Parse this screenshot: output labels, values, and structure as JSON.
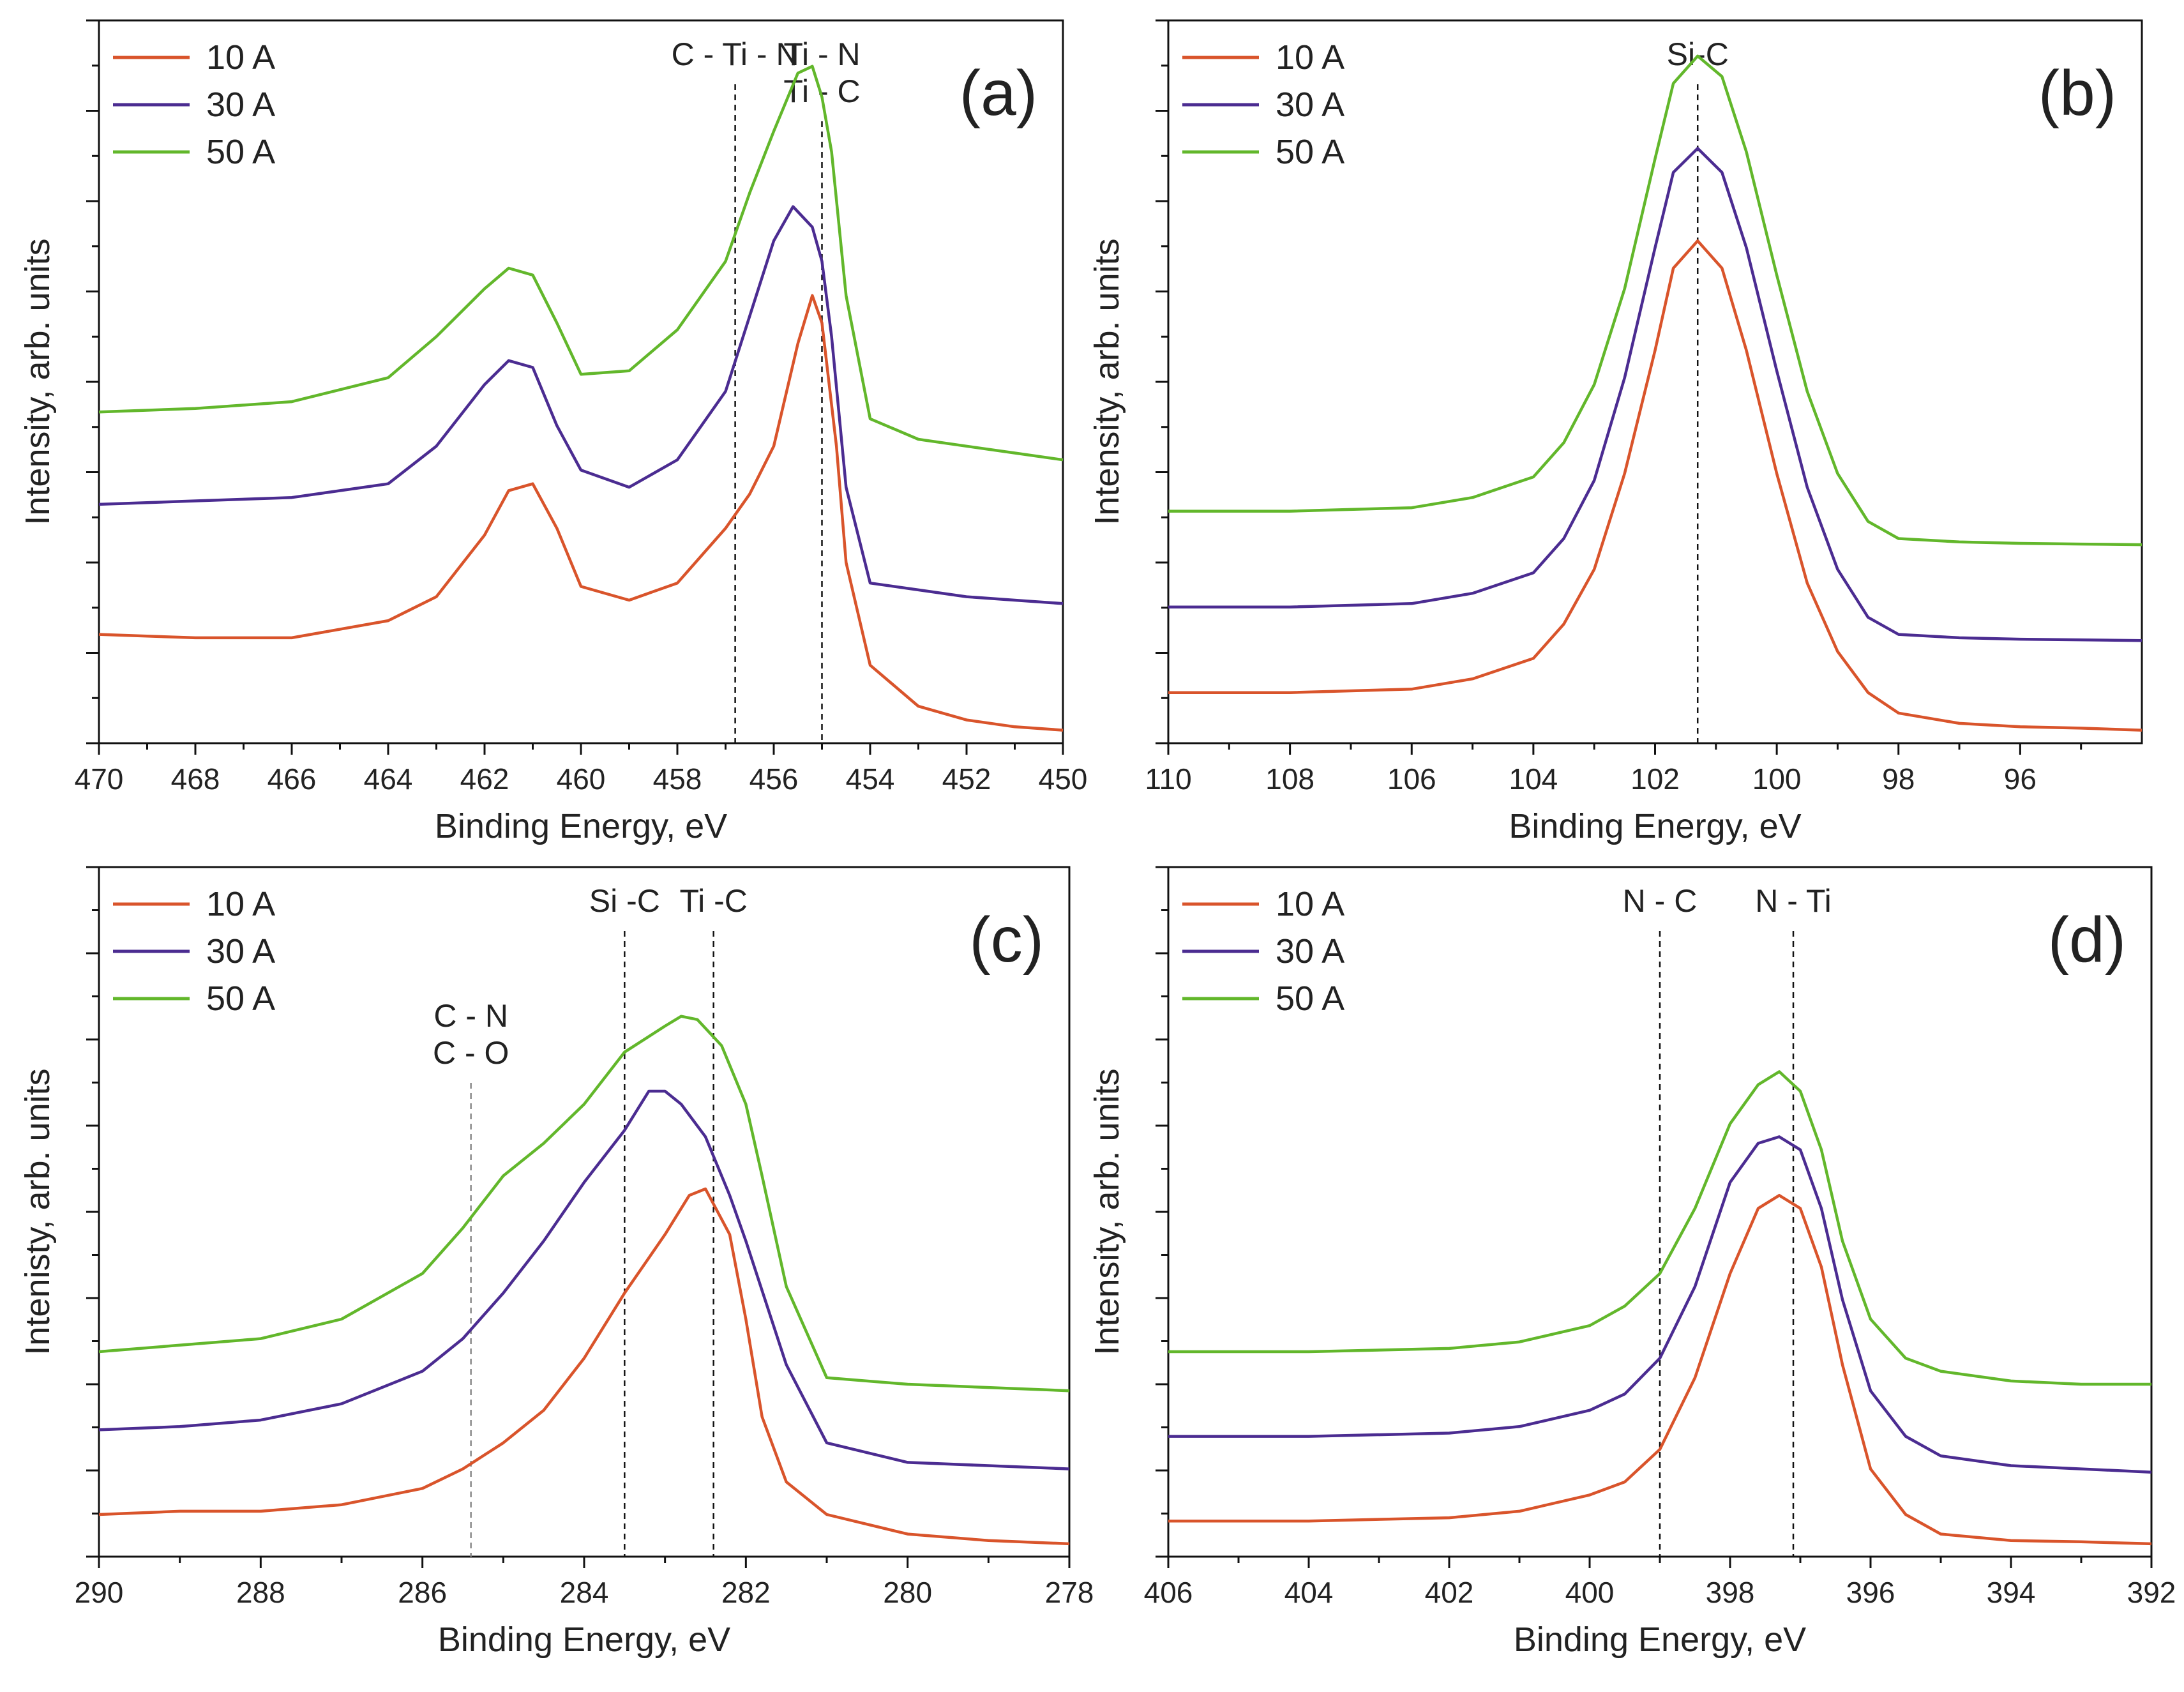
{
  "chart_data": [
    {
      "type": "line",
      "panel_label": "(a)",
      "xlabel": "Binding Energy, eV",
      "ylabel": "Intensity, arb. units",
      "xlim": [
        470,
        450
      ],
      "xticks": [
        "470",
        "468",
        "466",
        "464",
        "462",
        "460",
        "458",
        "456",
        "454",
        "452",
        "450"
      ],
      "legend": [
        "10 A",
        "30 A",
        "50 A"
      ],
      "legend_position": "top-left",
      "ref_lines": [
        {
          "x": 456.8,
          "label": [
            "C - Ti - N"
          ],
          "style": "dark"
        },
        {
          "x": 455.0,
          "label": [
            "Ti - N",
            "Ti - C"
          ],
          "style": "dark"
        }
      ],
      "series": [
        {
          "name": "10 A",
          "color": "#d9542b",
          "x": [
            470,
            468,
            466,
            464,
            463,
            462,
            461.5,
            461,
            460.5,
            460,
            459,
            458,
            457,
            456.5,
            456,
            455.5,
            455.2,
            455,
            454.7,
            454.5,
            454,
            453,
            452,
            451,
            450
          ],
          "y": [
            0.145,
            0.14,
            0.14,
            0.165,
            0.2,
            0.29,
            0.355,
            0.365,
            0.3,
            0.215,
            0.195,
            0.22,
            0.3,
            0.35,
            0.42,
            0.57,
            0.64,
            0.6,
            0.42,
            0.25,
            0.1,
            0.04,
            0.02,
            0.01,
            0.005
          ]
        },
        {
          "name": "30 A",
          "color": "#4b2c91",
          "x": [
            470,
            468,
            466,
            464,
            463,
            462,
            461.5,
            461,
            460.5,
            460,
            459,
            458,
            457,
            456.5,
            456,
            455.6,
            455.2,
            455,
            454.8,
            454.5,
            454,
            453,
            452,
            451,
            450
          ],
          "y": [
            0.335,
            0.34,
            0.345,
            0.365,
            0.42,
            0.51,
            0.545,
            0.535,
            0.45,
            0.385,
            0.36,
            0.4,
            0.5,
            0.61,
            0.72,
            0.77,
            0.74,
            0.69,
            0.58,
            0.36,
            0.22,
            0.21,
            0.2,
            0.195,
            0.19
          ]
        },
        {
          "name": "50 A",
          "color": "#62b72b",
          "x": [
            470,
            468,
            466,
            464,
            463,
            462,
            461.5,
            461,
            460.5,
            460,
            459,
            458,
            457,
            456.5,
            456,
            455.5,
            455.2,
            455,
            454.8,
            454.5,
            454,
            453,
            452,
            451,
            450
          ],
          "y": [
            0.47,
            0.475,
            0.485,
            0.52,
            0.58,
            0.65,
            0.68,
            0.67,
            0.6,
            0.525,
            0.53,
            0.59,
            0.69,
            0.79,
            0.88,
            0.965,
            0.975,
            0.93,
            0.85,
            0.64,
            0.46,
            0.43,
            0.42,
            0.41,
            0.4
          ]
        }
      ]
    },
    {
      "type": "line",
      "panel_label": "(b)",
      "xlabel": "Binding Energy, eV",
      "ylabel": "Intensity, arb. units",
      "xlim": [
        110,
        94
      ],
      "xticks": [
        "110",
        "108",
        "106",
        "104",
        "102",
        "100",
        "98",
        "96"
      ],
      "legend": [
        "10 A",
        "30 A",
        "50 A"
      ],
      "legend_position": "top-left",
      "ref_lines": [
        {
          "x": 101.3,
          "label": [
            "Si-C"
          ],
          "style": "dark"
        }
      ],
      "series": [
        {
          "name": "10 A",
          "color": "#d9542b",
          "x": [
            110,
            108,
            106,
            105,
            104,
            103.5,
            103,
            102.5,
            102,
            101.7,
            101.3,
            100.9,
            100.5,
            100,
            99.5,
            99,
            98.5,
            98,
            97,
            96,
            95,
            94
          ],
          "y": [
            0.06,
            0.06,
            0.065,
            0.08,
            0.11,
            0.16,
            0.24,
            0.38,
            0.56,
            0.68,
            0.72,
            0.68,
            0.56,
            0.38,
            0.22,
            0.12,
            0.06,
            0.03,
            0.015,
            0.01,
            0.008,
            0.005
          ]
        },
        {
          "name": "30 A",
          "color": "#4b2c91",
          "x": [
            110,
            108,
            106,
            105,
            104,
            103.5,
            103,
            102.5,
            102,
            101.7,
            101.3,
            100.9,
            100.5,
            100,
            99.5,
            99,
            98.5,
            98,
            97,
            96,
            95,
            94
          ],
          "y": [
            0.185,
            0.185,
            0.19,
            0.205,
            0.235,
            0.285,
            0.37,
            0.52,
            0.71,
            0.82,
            0.855,
            0.82,
            0.71,
            0.53,
            0.36,
            0.24,
            0.17,
            0.145,
            0.14,
            0.138,
            0.137,
            0.136
          ]
        },
        {
          "name": "50 A",
          "color": "#62b72b",
          "x": [
            110,
            108,
            106,
            105,
            104,
            103.5,
            103,
            102.5,
            102,
            101.7,
            101.3,
            100.9,
            100.5,
            100,
            99.5,
            99,
            98.5,
            98,
            97,
            96,
            95,
            94
          ],
          "y": [
            0.325,
            0.325,
            0.33,
            0.345,
            0.375,
            0.425,
            0.51,
            0.65,
            0.84,
            0.95,
            0.99,
            0.96,
            0.85,
            0.67,
            0.5,
            0.38,
            0.31,
            0.285,
            0.28,
            0.278,
            0.277,
            0.276
          ]
        }
      ]
    },
    {
      "type": "line",
      "panel_label": "(c)",
      "xlabel": "Binding Energy, eV",
      "ylabel": "Intenisty, arb. units",
      "xlim": [
        290,
        278
      ],
      "xticks": [
        "290",
        "288",
        "286",
        "284",
        "282",
        "280",
        "278"
      ],
      "legend": [
        "10 A",
        "30 A",
        "50 A"
      ],
      "legend_position": "top-left",
      "ref_lines": [
        {
          "x": 285.4,
          "label": [
            "C - N",
            "C - O"
          ],
          "style": "gray"
        },
        {
          "x": 283.5,
          "label": [
            "Si -C"
          ],
          "style": "dark"
        },
        {
          "x": 282.4,
          "label": [
            "Ti -C"
          ],
          "style": "dark"
        }
      ],
      "series": [
        {
          "name": "10 A",
          "color": "#d9542b",
          "x": [
            290,
            289,
            288,
            287,
            286,
            285.5,
            285,
            284.5,
            284,
            283.5,
            283,
            282.7,
            282.5,
            282.2,
            282,
            281.8,
            281.5,
            281,
            280,
            279,
            278
          ],
          "y": [
            0.05,
            0.055,
            0.055,
            0.065,
            0.09,
            0.12,
            0.16,
            0.21,
            0.29,
            0.39,
            0.48,
            0.54,
            0.55,
            0.48,
            0.35,
            0.2,
            0.1,
            0.05,
            0.02,
            0.01,
            0.005
          ]
        },
        {
          "name": "30 A",
          "color": "#4b2c91",
          "x": [
            290,
            289,
            288,
            287,
            286,
            285.5,
            285,
            284.5,
            284,
            283.5,
            283.2,
            283,
            282.8,
            282.5,
            282.2,
            282,
            281.5,
            281,
            280,
            279,
            278
          ],
          "y": [
            0.18,
            0.185,
            0.195,
            0.22,
            0.27,
            0.32,
            0.39,
            0.47,
            0.56,
            0.64,
            0.7,
            0.7,
            0.68,
            0.63,
            0.54,
            0.47,
            0.28,
            0.16,
            0.13,
            0.125,
            0.12
          ]
        },
        {
          "name": "50 A",
          "color": "#62b72b",
          "x": [
            290,
            289,
            288,
            287,
            286,
            285.5,
            285,
            284.5,
            284,
            283.5,
            283,
            282.8,
            282.6,
            282.3,
            282,
            281.8,
            281.5,
            281,
            280,
            279,
            278
          ],
          "y": [
            0.3,
            0.31,
            0.32,
            0.35,
            0.42,
            0.49,
            0.57,
            0.62,
            0.68,
            0.76,
            0.8,
            0.815,
            0.81,
            0.77,
            0.68,
            0.57,
            0.4,
            0.26,
            0.25,
            0.245,
            0.24
          ]
        }
      ]
    },
    {
      "type": "line",
      "panel_label": "(d)",
      "xlabel": "Binding Energy, eV",
      "ylabel": "Intensity, arb. units",
      "xlim": [
        406,
        392
      ],
      "xticks": [
        "406",
        "404",
        "402",
        "400",
        "398",
        "396",
        "394",
        "392"
      ],
      "legend": [
        "10 A",
        "30 A",
        "50 A"
      ],
      "legend_position": "top-left",
      "ref_lines": [
        {
          "x": 399.0,
          "label": [
            "N - C"
          ],
          "style": "dark"
        },
        {
          "x": 397.1,
          "label": [
            "N - Ti"
          ],
          "style": "dark"
        }
      ],
      "series": [
        {
          "name": "10 A",
          "color": "#d9542b",
          "x": [
            406,
            404,
            402,
            401,
            400,
            399.5,
            399,
            398.5,
            398,
            397.6,
            397.3,
            397,
            396.7,
            396.4,
            396,
            395.5,
            395,
            394,
            393,
            392
          ],
          "y": [
            0.04,
            0.04,
            0.045,
            0.055,
            0.08,
            0.1,
            0.15,
            0.26,
            0.42,
            0.52,
            0.54,
            0.52,
            0.43,
            0.28,
            0.12,
            0.05,
            0.02,
            0.01,
            0.008,
            0.005
          ]
        },
        {
          "name": "30 A",
          "color": "#4b2c91",
          "x": [
            406,
            404,
            402,
            401,
            400,
            399.5,
            399,
            398.5,
            398,
            397.6,
            397.3,
            397,
            396.7,
            396.4,
            396,
            395.5,
            395,
            394,
            393,
            392
          ],
          "y": [
            0.17,
            0.17,
            0.175,
            0.185,
            0.21,
            0.235,
            0.29,
            0.4,
            0.56,
            0.62,
            0.63,
            0.61,
            0.52,
            0.38,
            0.24,
            0.17,
            0.14,
            0.125,
            0.12,
            0.115
          ]
        },
        {
          "name": "50 A",
          "color": "#62b72b",
          "x": [
            406,
            404,
            402,
            401,
            400,
            399.5,
            399,
            398.5,
            398,
            397.6,
            397.3,
            397,
            396.7,
            396.4,
            396,
            395.5,
            395,
            394,
            393,
            392
          ],
          "y": [
            0.3,
            0.3,
            0.305,
            0.315,
            0.34,
            0.37,
            0.42,
            0.52,
            0.65,
            0.71,
            0.73,
            0.7,
            0.61,
            0.47,
            0.35,
            0.29,
            0.27,
            0.255,
            0.25,
            0.25
          ]
        }
      ]
    }
  ]
}
